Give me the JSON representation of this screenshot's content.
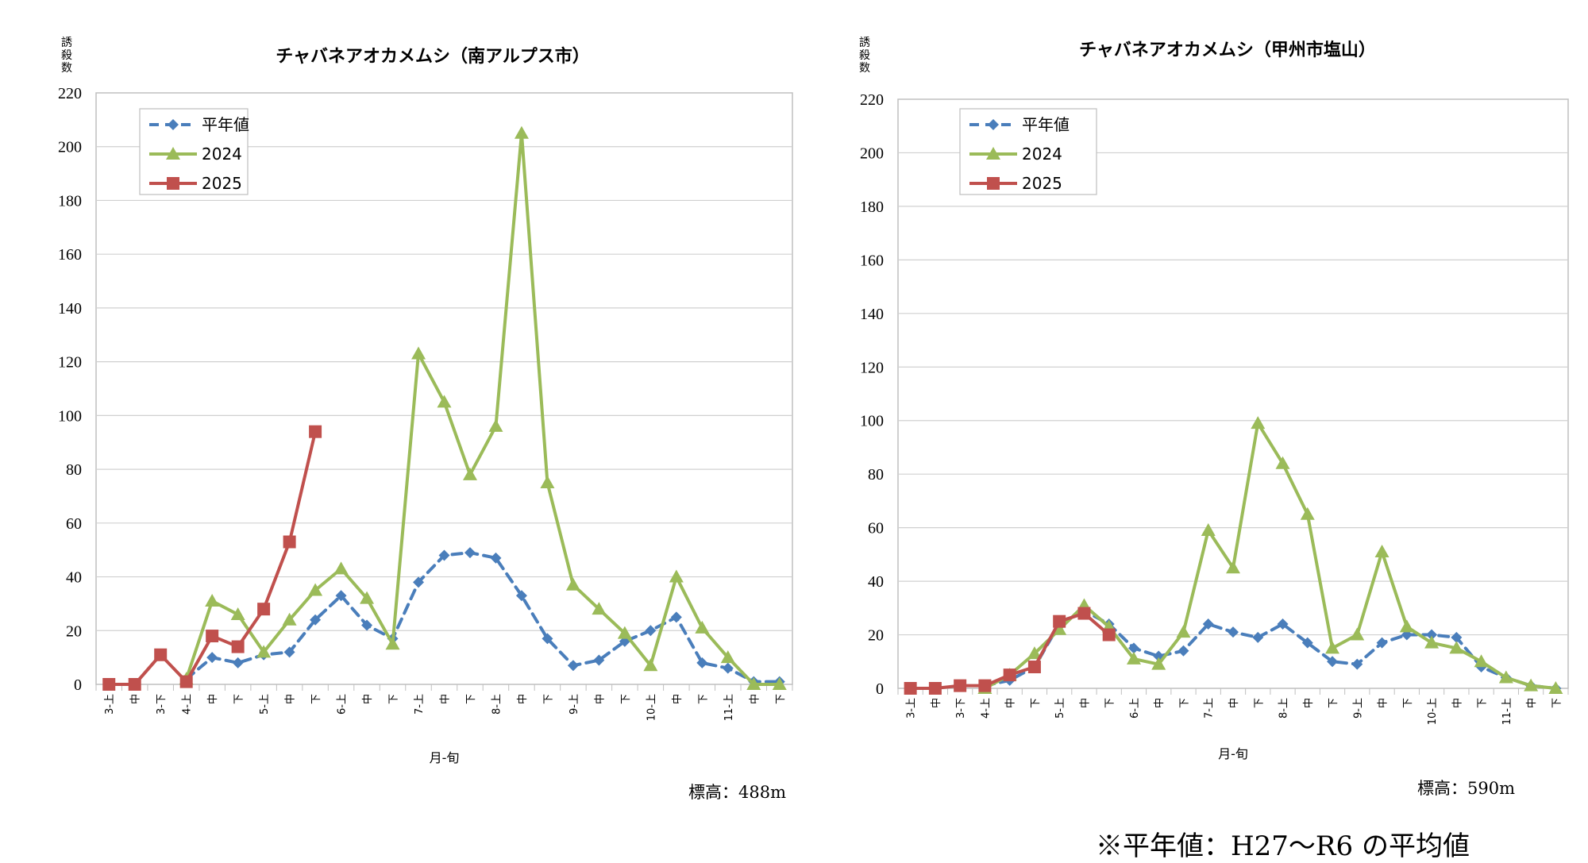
{
  "footnote": "※平年値：H27〜R6 の平均値",
  "series_styles": [
    {
      "name": "平年値",
      "color": "#4a7ebb",
      "marker": "diamond",
      "dash": true
    },
    {
      "name": "2024",
      "color": "#9bbb59",
      "marker": "triangle",
      "dash": false
    },
    {
      "name": "2025",
      "color": "#c0504d",
      "marker": "square",
      "dash": false
    }
  ],
  "chart_data": [
    {
      "type": "line",
      "title": "チャバネアオカメムシ（南アルプス市）",
      "ylabel": "誘殺数",
      "xlabel": "月-旬",
      "elevation": "標高：488m",
      "ylim": [
        0,
        220
      ],
      "yticks": [
        0,
        20,
        40,
        60,
        80,
        100,
        120,
        140,
        160,
        180,
        200,
        220
      ],
      "grid": true,
      "legend_position": "top-left",
      "categories": [
        "3-上",
        "中",
        "3-下",
        "4-上",
        "中",
        "下",
        "5-上",
        "中",
        "下",
        "6-上",
        "中",
        "下",
        "7-上",
        "中",
        "下",
        "8-上",
        "中",
        "下",
        "9-上",
        "中",
        "下",
        "10-上",
        "中",
        "下",
        "11-上",
        "中",
        "下"
      ],
      "series": [
        {
          "name": "平年値",
          "values": [
            null,
            null,
            null,
            2,
            10,
            8,
            11,
            12,
            24,
            33,
            22,
            17,
            38,
            48,
            49,
            47,
            33,
            17,
            7,
            9,
            16,
            20,
            25,
            8,
            6,
            1,
            1
          ]
        },
        {
          "name": "2024",
          "values": [
            null,
            null,
            null,
            2,
            31,
            26,
            12,
            24,
            35,
            43,
            32,
            15,
            123,
            105,
            78,
            96,
            205,
            75,
            37,
            28,
            19,
            7,
            40,
            21,
            10,
            0,
            0
          ]
        },
        {
          "name": "2025",
          "values": [
            0,
            0,
            11,
            1,
            18,
            14,
            28,
            53,
            94,
            null,
            null,
            null,
            null,
            null,
            null,
            null,
            null,
            null,
            null,
            null,
            null,
            null,
            null,
            null,
            null,
            null,
            null
          ]
        }
      ]
    },
    {
      "type": "line",
      "title": "チャバネアオカメムシ（甲州市塩山）",
      "ylabel": "誘殺数",
      "xlabel": "月-旬",
      "elevation": "標高：590m",
      "ylim": [
        0,
        220
      ],
      "yticks": [
        0,
        20,
        40,
        60,
        80,
        100,
        120,
        140,
        160,
        180,
        200,
        220
      ],
      "grid": true,
      "legend_position": "top-left",
      "categories": [
        "3-上",
        "中",
        "3-下",
        "4-上",
        "中",
        "下",
        "5-上",
        "中",
        "下",
        "6-上",
        "中",
        "下",
        "7-上",
        "中",
        "下",
        "8-上",
        "中",
        "下",
        "9-上",
        "中",
        "下",
        "10-上",
        "中",
        "下",
        "11-上",
        "中",
        "下"
      ],
      "series": [
        {
          "name": "平年値",
          "values": [
            null,
            null,
            null,
            1,
            3,
            8,
            24,
            29,
            24,
            15,
            12,
            14,
            24,
            21,
            19,
            24,
            17,
            10,
            9,
            17,
            20,
            20,
            19,
            8,
            4,
            1,
            0
          ]
        },
        {
          "name": "2024",
          "values": [
            null,
            null,
            null,
            0,
            5,
            13,
            22,
            31,
            23,
            11,
            9,
            21,
            59,
            45,
            99,
            84,
            65,
            15,
            20,
            51,
            23,
            17,
            15,
            10,
            4,
            1,
            0
          ]
        },
        {
          "name": "2025",
          "values": [
            0,
            0,
            1,
            1,
            5,
            8,
            25,
            28,
            20,
            null,
            null,
            null,
            null,
            null,
            null,
            null,
            null,
            null,
            null,
            null,
            null,
            null,
            null,
            null,
            null,
            null,
            null
          ]
        }
      ]
    }
  ]
}
